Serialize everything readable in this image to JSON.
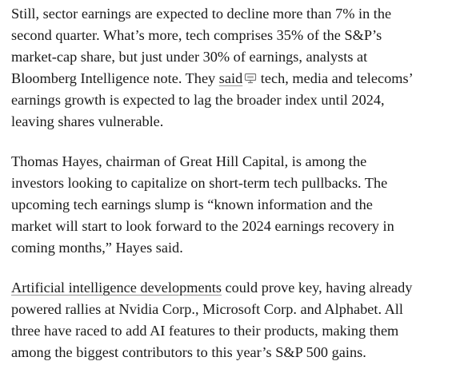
{
  "article": {
    "paragraphs": [
      {
        "lines": [
          [
            {
              "text": "Still, sector earnings are expected to decline more than 7% in the"
            }
          ],
          [
            {
              "text": "second quarter. What’s more, tech comprises 35% of the S&P’s"
            }
          ],
          [
            {
              "text": "market-cap share, but just under 30% of earnings, analysts at"
            }
          ],
          [
            {
              "text": "Bloomberg Intelligence note. They "
            },
            {
              "text": "said",
              "link": true,
              "icon": true
            },
            {
              "text": " tech, media and telecoms’"
            }
          ],
          [
            {
              "text": "earnings growth is expected to lag the broader index until 2024,"
            }
          ],
          [
            {
              "text": "leaving shares vulnerable."
            }
          ]
        ]
      },
      {
        "lines": [
          [
            {
              "text": "Thomas Hayes, chairman of Great Hill Capital, is among the"
            }
          ],
          [
            {
              "text": "investors looking to capitalize on short-term tech pullbacks. The"
            }
          ],
          [
            {
              "text": "upcoming tech earnings slump is “known information and the"
            }
          ],
          [
            {
              "text": "market will start to look forward to the 2024 earnings recovery in"
            }
          ],
          [
            {
              "text": "coming months,” Hayes said."
            }
          ]
        ]
      },
      {
        "lines": [
          [
            {
              "text": "Artificial intelligence developments",
              "link": true
            },
            {
              "text": " could prove key, having already"
            }
          ],
          [
            {
              "text": "powered rallies at Nvidia Corp., Microsoft Corp. and Alphabet. All"
            }
          ],
          [
            {
              "text": "three have raced to add AI features to their products, making them"
            }
          ],
          [
            {
              "text": "among the biggest contributors to this year’s S&P 500 gains."
            }
          ]
        ]
      }
    ]
  }
}
